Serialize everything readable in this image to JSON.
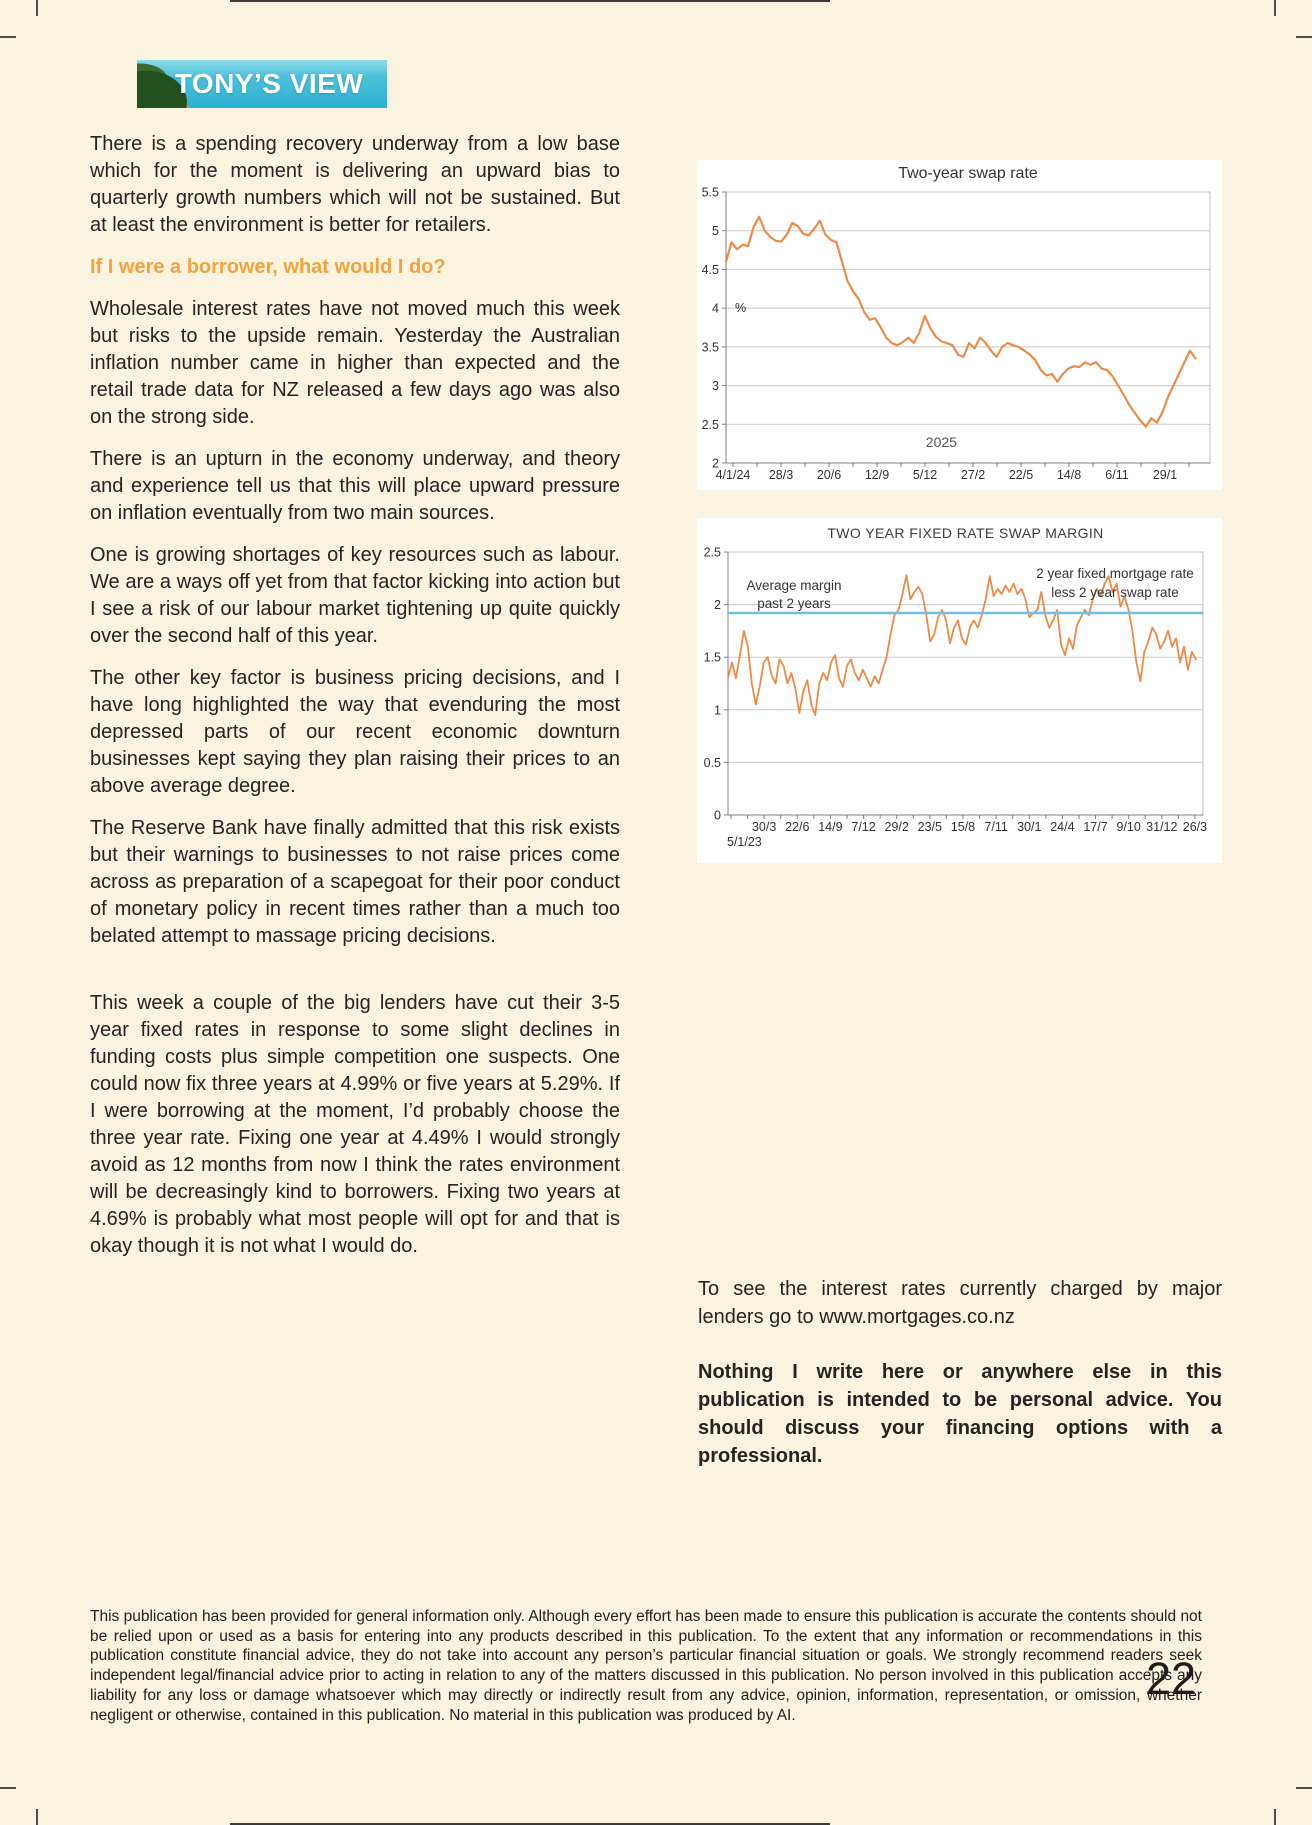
{
  "page": {
    "number": "22",
    "background": "#FAF3DF"
  },
  "logo": {
    "title": "TONY’S VIEW"
  },
  "article": {
    "p1": "There is a spending recovery underway from a low base which for the moment is delivering an upward bias to quarterly growth numbers which will not be sustained. But at least the environment is better for retailers.",
    "heading": "If I were a borrower, what would I do?",
    "heading_color": "#F2A23E",
    "p2": "Wholesale interest rates have not moved much this week but risks to the upside remain. Yesterday the Australian inflation number came in higher than expected and the retail trade data for NZ released a few days ago was also on the strong side.",
    "p3": "There is an upturn in the economy underway, and theory and experience tell us that this will place upward pressure on inflation eventually from two main sources.",
    "p4": "One is growing shortages of key resources such as labour. We are a ways off yet from that factor kicking into action but I see a risk of our labour market tightening up quite quickly over the second half of this year.",
    "p5": "The other key factor is business pricing decisions, and I have long highlighted the way that evenduring the most depressed parts of our recent economic downturn businesses kept saying they plan raising their prices to an above average degree.",
    "p6": "The Reserve Bank have finally admitted that this risk exists but their warnings to businesses to not raise prices come across as preparation of a scapegoat for their poor conduct of monetary policy in recent times rather than a much too belated attempt to massage pricing decisions.",
    "p7": "This week a couple of the big lenders have cut their 3-5 year fixed rates in response to some slight declines in funding costs plus simple competition one suspects. One could now fix three years at 4.99% or five years at 5.29%. If I were borrowing at the moment, I’d probably choose the three year rate. Fixing one year at 4.49% I would strongly avoid as 12 months from now I think the rates environment will be decreasingly kind to borrowers. Fixing two years at 4.69% is probably what most people will opt for and that is okay though it is not what I would do."
  },
  "right_column": {
    "rates_note": "To see the interest rates currently charged by major lenders go to www.mortgages.co.nz",
    "advice_disclaimer": "Nothing I write here or anywhere else in this publication is intended to be personal advice. You should discuss your financing options with a professional."
  },
  "footer": {
    "disclaimer": "This publication has been provided for general information only. Although every effort has been made to ensure this publication is accurate the contents should not be relied upon or used as a basis for entering into any products described in this publication. To the extent that any information or recommendations in this publication constitute financial advice, they do not take into account any person’s particular financial situation or goals. We strongly recommend readers seek independent legal/financial advice prior to acting in relation to any of the matters discussed in this publication. No person involved in this publication accepts any liability for any loss or damage whatsoever which may directly or indirectly result from any advice, opinion, information, representation, or omission, whether negligent or otherwise, contained in this publication. No material in this publication was produced by AI."
  },
  "chart_data": [
    {
      "type": "line",
      "title": "Two-year swap rate",
      "ylabel": "%",
      "ylabel_at": 4,
      "ylim": [
        2,
        5.5
      ],
      "yticks": [
        5.5,
        5,
        4.5,
        4,
        3.5,
        3,
        2.5,
        2
      ],
      "x_tick_labels": [
        "4/1/24",
        "28/3",
        "20/6",
        "12/9",
        "5/12",
        "27/2",
        "22/5",
        "14/8",
        "6/11",
        "29/1"
      ],
      "x_axis_note": "2025",
      "x_span": 0.97,
      "grid": true,
      "legend_position": "none",
      "line_color": "#EC8A47",
      "line_width": 2.2,
      "values": [
        4.6,
        4.85,
        4.76,
        4.82,
        4.8,
        5.05,
        5.18,
        5.0,
        4.92,
        4.87,
        4.86,
        4.95,
        5.1,
        5.06,
        4.96,
        4.94,
        5.03,
        5.13,
        4.95,
        4.88,
        4.85,
        4.6,
        4.35,
        4.22,
        4.12,
        3.95,
        3.85,
        3.87,
        3.75,
        3.62,
        3.55,
        3.52,
        3.56,
        3.62,
        3.55,
        3.68,
        3.9,
        3.74,
        3.63,
        3.57,
        3.55,
        3.52,
        3.4,
        3.37,
        3.55,
        3.48,
        3.62,
        3.55,
        3.45,
        3.37,
        3.5,
        3.55,
        3.52,
        3.5,
        3.45,
        3.4,
        3.33,
        3.2,
        3.13,
        3.15,
        3.05,
        3.15,
        3.22,
        3.25,
        3.24,
        3.3,
        3.27,
        3.3,
        3.22,
        3.2,
        3.12,
        3.0,
        2.88,
        2.75,
        2.65,
        2.55,
        2.47,
        2.58,
        2.52,
        2.65,
        2.85,
        3.0,
        3.15,
        3.3,
        3.45,
        3.35
      ]
    },
    {
      "type": "line",
      "title": "TWO YEAR FIXED RATE SWAP MARGIN",
      "ylim": [
        0,
        2.5
      ],
      "yticks": [
        2.5,
        2,
        1.5,
        1,
        0.5,
        0
      ],
      "x_first_label": "5/1/23",
      "x_tick_labels": [
        "30/3",
        "22/6",
        "14/9",
        "7/12",
        "29/2",
        "23/5",
        "15/8",
        "7/11",
        "30/1",
        "24/4",
        "17/7",
        "9/10",
        "31/12",
        "26/3"
      ],
      "x_span": 0.985,
      "grid": true,
      "legend_position": "none",
      "line_color": "#EC8A47",
      "line_width": 1.8,
      "series_label": "2 year fixed mortgage rate less 2 year swap rate",
      "reference_line": {
        "label": "Average margin past 2 years",
        "value": 1.92,
        "color": "#72BEE8"
      },
      "annotations": [
        {
          "lines": [
            "Average margin",
            "past 2 years"
          ],
          "x": 97,
          "y": 72,
          "lh": 18
        },
        {
          "lines": [
            "2 year fixed mortgage rate",
            "less 2 year swap rate"
          ],
          "x": 418,
          "y": 60,
          "lh": 19
        }
      ],
      "values": [
        1.3,
        1.45,
        1.3,
        1.52,
        1.75,
        1.6,
        1.25,
        1.05,
        1.22,
        1.45,
        1.5,
        1.33,
        1.25,
        1.48,
        1.42,
        1.25,
        1.35,
        1.2,
        0.97,
        1.18,
        1.28,
        1.05,
        0.95,
        1.25,
        1.35,
        1.28,
        1.45,
        1.52,
        1.3,
        1.22,
        1.42,
        1.48,
        1.35,
        1.28,
        1.38,
        1.3,
        1.22,
        1.32,
        1.25,
        1.38,
        1.5,
        1.72,
        1.9,
        1.95,
        2.1,
        2.28,
        2.05,
        2.12,
        2.17,
        2.1,
        1.9,
        1.65,
        1.72,
        1.88,
        1.95,
        1.85,
        1.63,
        1.78,
        1.85,
        1.68,
        1.62,
        1.78,
        1.85,
        1.78,
        1.9,
        2.05,
        2.27,
        2.08,
        2.15,
        2.1,
        2.18,
        2.12,
        2.2,
        2.1,
        2.15,
        2.05,
        1.88,
        1.92,
        1.95,
        2.12,
        1.9,
        1.78,
        1.85,
        1.95,
        1.62,
        1.52,
        1.68,
        1.58,
        1.8,
        1.88,
        1.95,
        1.9,
        2.05,
        2.15,
        2.08,
        2.2,
        2.27,
        2.12,
        2.2,
        1.98,
        2.08,
        1.95,
        1.75,
        1.45,
        1.27,
        1.55,
        1.65,
        1.78,
        1.72,
        1.58,
        1.65,
        1.75,
        1.6,
        1.68,
        1.45,
        1.6,
        1.38,
        1.55,
        1.48
      ]
    }
  ]
}
